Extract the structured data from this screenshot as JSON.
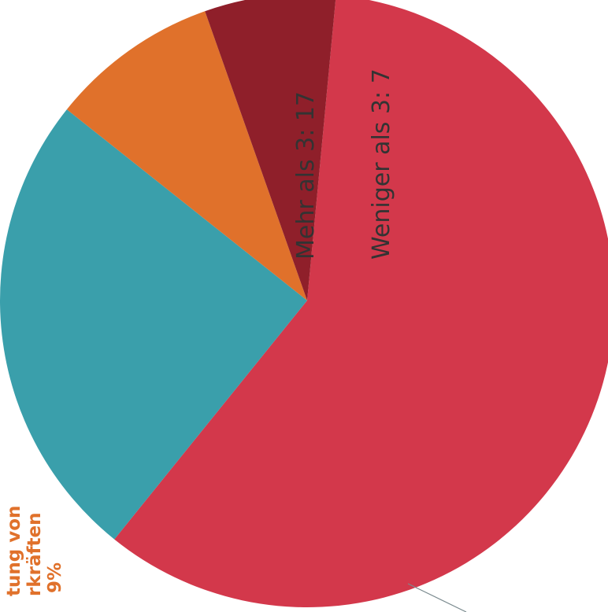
{
  "chart_data": {
    "type": "pie",
    "slices": [
      {
        "name": "",
        "value": 59.3,
        "color": "#d3384b"
      },
      {
        "name": "",
        "value": 24.9,
        "color": "#3a9fab"
      },
      {
        "name": "",
        "value": 8.9,
        "color": "#e0712b"
      },
      {
        "name": "",
        "value": 6.9,
        "color": "#8f1f2a"
      }
    ],
    "inner_labels": [
      "Mehr als 3: 17",
      "Weniger als 3: 7"
    ],
    "side_label_lines": [
      "tung von",
      "rkräften",
      "9%"
    ],
    "label_color": "#333333",
    "side_label_color": "#e0712b"
  }
}
